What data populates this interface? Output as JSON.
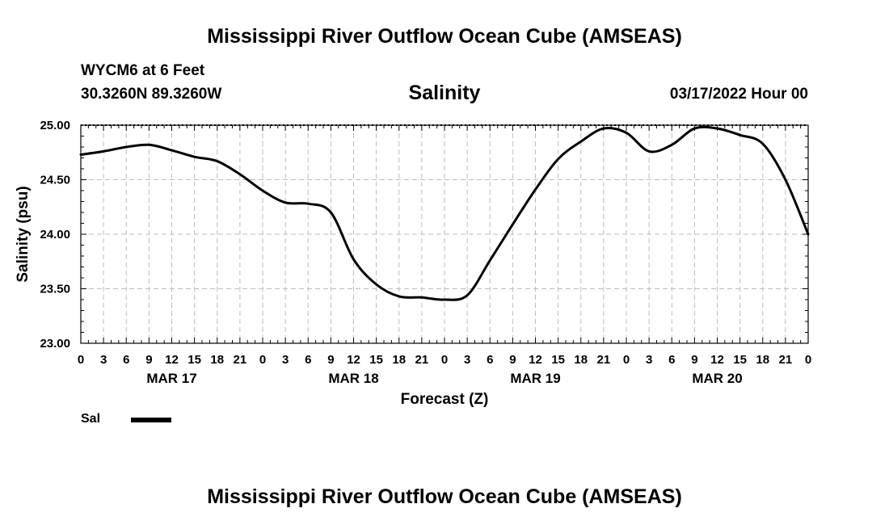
{
  "header": {
    "title": "Mississippi River Outflow Ocean Cube (AMSEAS)",
    "station": "WYCM6 at 6 Feet",
    "coords": "30.3260N  89.3260W",
    "subtitle": "Salinity",
    "datetime": "03/17/2022 Hour 00"
  },
  "footer": {
    "title": "Mississippi River Outflow Ocean Cube (AMSEAS)"
  },
  "legend": {
    "label": "Sal",
    "color": "#000000"
  },
  "chart_data": {
    "type": "line",
    "title": "Salinity",
    "xlabel": "Forecast (Z)",
    "ylabel": "Salinity (psu)",
    "ylim": [
      23.0,
      25.0
    ],
    "yticks": [
      "23.00",
      "23.50",
      "24.00",
      "24.50",
      "25.00"
    ],
    "xlim": [
      0,
      96
    ],
    "xtick_labels": [
      "0",
      "3",
      "6",
      "9",
      "12",
      "15",
      "18",
      "21",
      "0",
      "3",
      "6",
      "9",
      "12",
      "15",
      "18",
      "21",
      "0",
      "3",
      "6",
      "9",
      "12",
      "15",
      "18",
      "21",
      "0",
      "3",
      "6",
      "9",
      "12",
      "15",
      "18",
      "21",
      "0"
    ],
    "day_labels": [
      {
        "hour": 12,
        "label": "MAR 17"
      },
      {
        "hour": 36,
        "label": "MAR 18"
      },
      {
        "hour": 60,
        "label": "MAR 19"
      },
      {
        "hour": 84,
        "label": "MAR 20"
      }
    ],
    "grid": true,
    "series": [
      {
        "name": "Sal",
        "x": [
          0,
          3,
          6,
          9,
          12,
          15,
          18,
          21,
          24,
          27,
          30,
          33,
          36,
          39,
          42,
          45,
          48,
          51,
          54,
          57,
          60,
          63,
          66,
          69,
          72,
          75,
          78,
          81,
          84,
          87,
          90,
          93,
          96
        ],
        "values": [
          24.73,
          24.76,
          24.8,
          24.82,
          24.77,
          24.71,
          24.67,
          24.55,
          24.4,
          24.29,
          24.28,
          24.2,
          23.77,
          23.54,
          23.43,
          23.42,
          23.4,
          23.44,
          23.76,
          24.09,
          24.41,
          24.69,
          24.85,
          24.97,
          24.93,
          24.76,
          24.82,
          24.97,
          24.97,
          24.91,
          24.83,
          24.5,
          24.0
        ]
      }
    ]
  }
}
